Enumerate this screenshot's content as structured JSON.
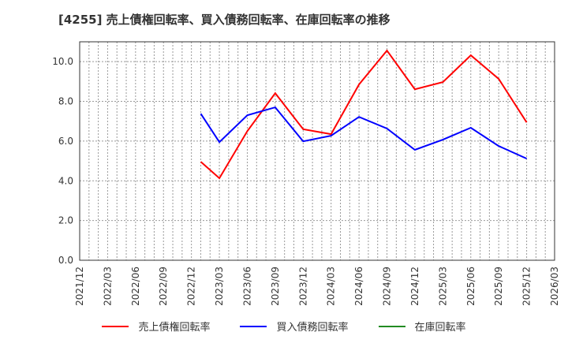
{
  "title": "[4255]  売上債権回転率、買入債務回転率、在庫回転率の推移",
  "legend": [
    {
      "label": "売上債権回転率",
      "color": "#ff0000"
    },
    {
      "label": "買入債務回転率",
      "color": "#0000ff"
    },
    {
      "label": "在庫回転率",
      "color": "#228b22"
    }
  ],
  "chart_data": {
    "type": "line",
    "title": "[4255]  売上債権回転率、買入債務回転率、在庫回転率の推移",
    "xlabel": "",
    "ylabel": "",
    "ylim": [
      0,
      11
    ],
    "yticks": [
      "0.0",
      "2.0",
      "4.0",
      "6.0",
      "8.0",
      "10.0"
    ],
    "xticks": [
      "2021/12",
      "2022/03",
      "2022/06",
      "2022/09",
      "2022/12",
      "2023/03",
      "2023/06",
      "2023/09",
      "2023/12",
      "2024/03",
      "2024/06",
      "2024/09",
      "2024/12",
      "2025/03",
      "2025/06",
      "2025/09",
      "2025/12",
      "2026/03"
    ],
    "grid": true,
    "legend_position": "bottom",
    "x": [
      "2023/01",
      "2023/03",
      "2023/06",
      "2023/09",
      "2023/12",
      "2024/03",
      "2024/06",
      "2024/09",
      "2024/12",
      "2025/03",
      "2025/06",
      "2025/09",
      "2025/12"
    ],
    "series": [
      {
        "name": "売上債権回転率",
        "color": "#ff0000",
        "values": [
          4.96,
          4.13,
          6.5,
          8.41,
          6.6,
          6.35,
          8.85,
          10.56,
          8.61,
          8.97,
          10.32,
          9.13,
          6.94
        ]
      },
      {
        "name": "買入債務回転率",
        "color": "#0000ff",
        "values": [
          7.38,
          5.95,
          7.3,
          7.7,
          5.99,
          6.27,
          7.22,
          6.63,
          5.56,
          6.07,
          6.67,
          5.75,
          5.12
        ]
      },
      {
        "name": "在庫回転率",
        "color": "#228b22",
        "values": []
      }
    ]
  }
}
